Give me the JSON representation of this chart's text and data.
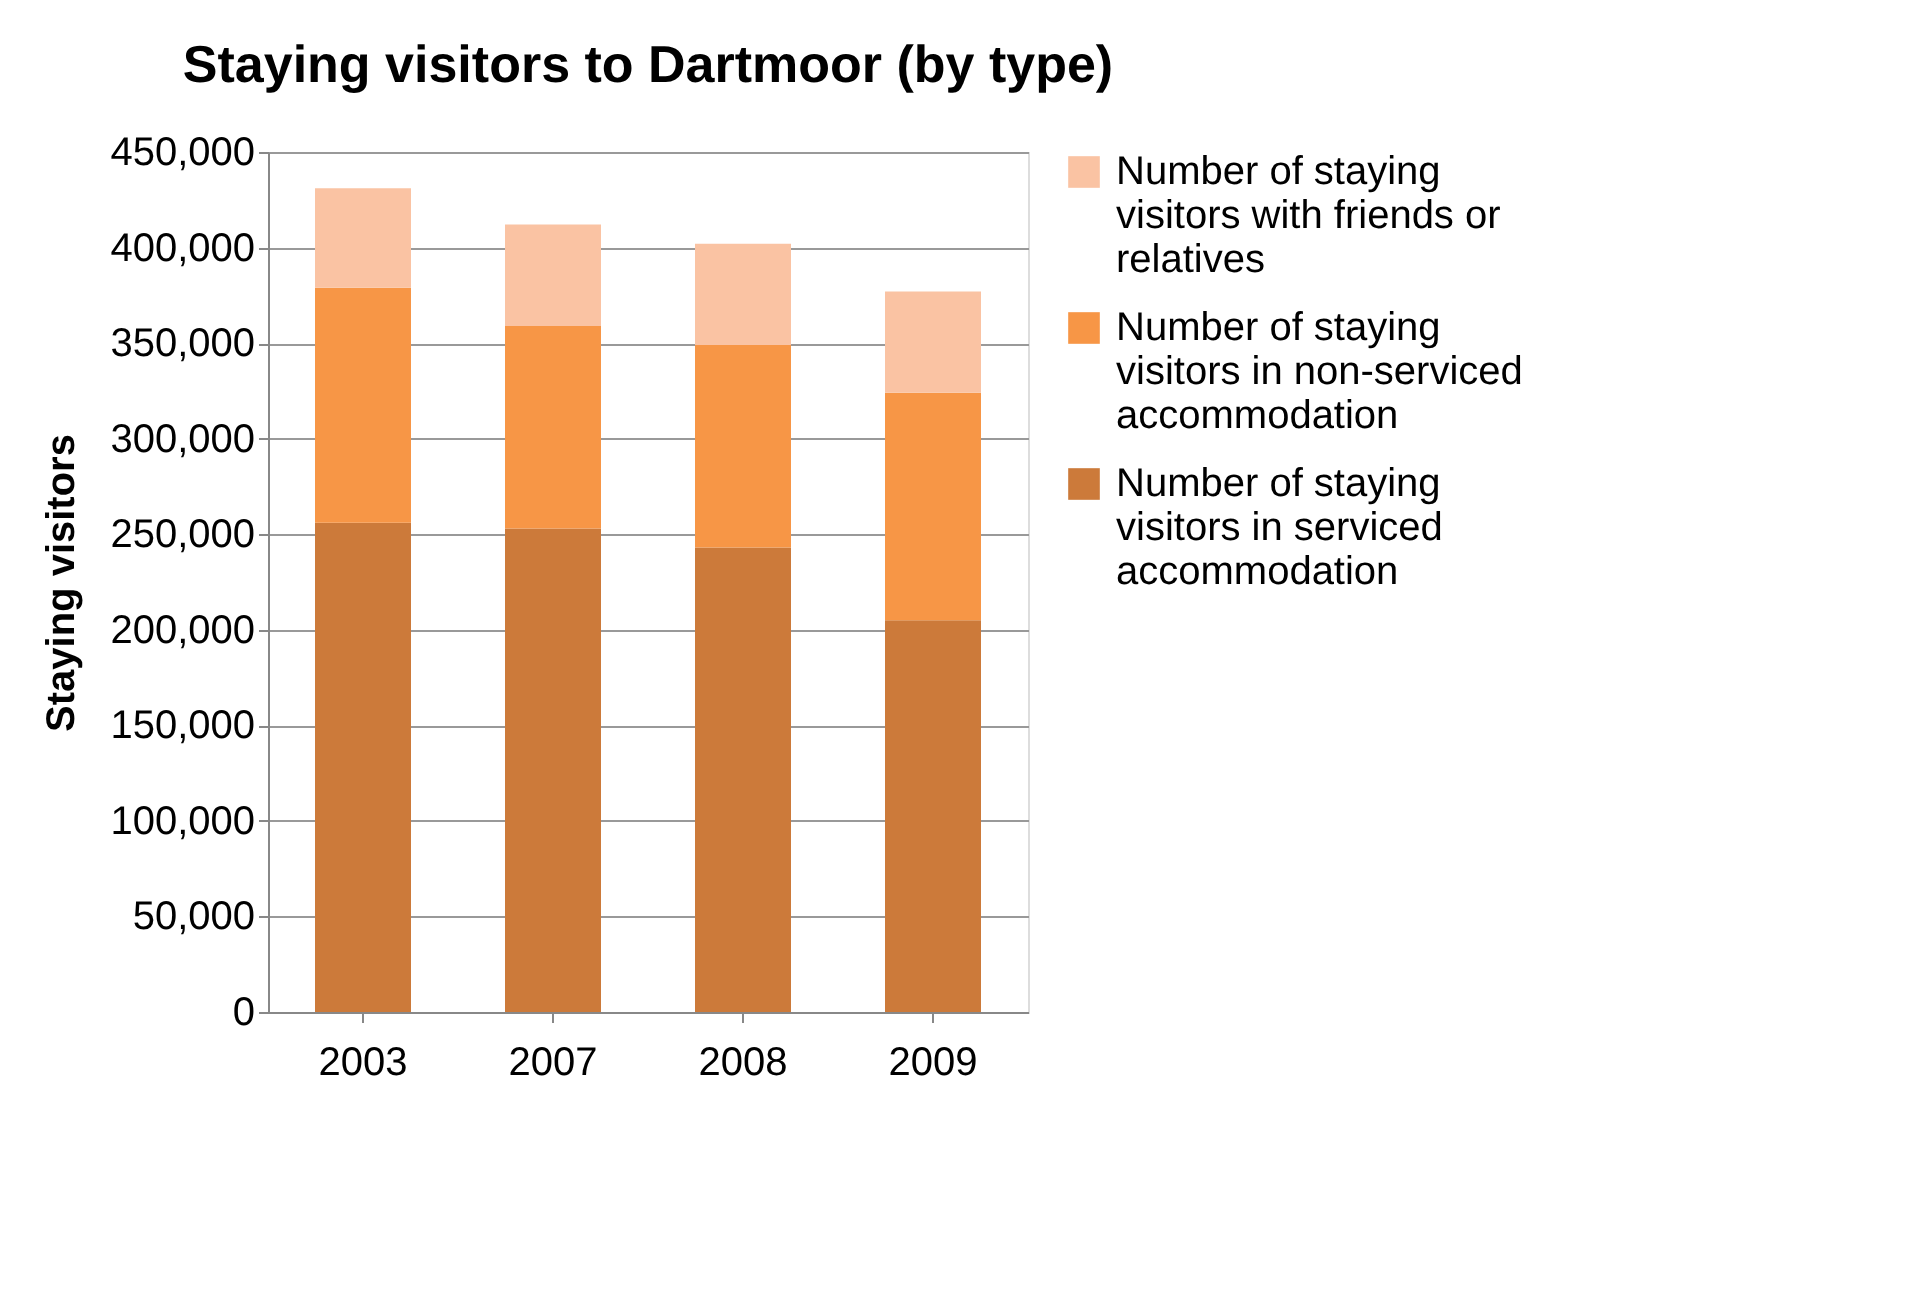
{
  "chart_data": {
    "type": "bar",
    "stacked": true,
    "title": "Staying visitors to Dartmoor (by type)",
    "ylabel": "Staying visitors",
    "categories": [
      "2003",
      "2007",
      "2008",
      "2009"
    ],
    "series": [
      {
        "name": "Number of staying visitors in serviced accommodation",
        "color": "#cc7a3a",
        "values": [
          256000,
          253000,
          243000,
          205000
        ]
      },
      {
        "name": "Number of staying visitors in non-serviced accommodation",
        "color": "#f79646",
        "values": [
          123000,
          106000,
          106000,
          119000
        ]
      },
      {
        "name": "Number of staying visitors with friends or relatives",
        "color": "#fac3a3",
        "values": [
          52000,
          53000,
          53000,
          53000
        ]
      }
    ],
    "ylim": [
      0,
      450000
    ],
    "yticks": [
      0,
      {
        "value": 50000,
        "label": "50,000"
      },
      {
        "value": 100000,
        "label": "100,000"
      },
      {
        "value": 150000,
        "label": "150,000"
      },
      {
        "value": 200000,
        "label": "200,000"
      },
      {
        "value": 250000,
        "label": "250,000"
      },
      {
        "value": 300000,
        "label": "300,000"
      },
      {
        "value": 350000,
        "label": "350,000"
      },
      {
        "value": 400000,
        "label": "400,000"
      },
      {
        "value": 450000,
        "label": "450,000"
      }
    ],
    "grid": "y",
    "legend": "right"
  }
}
